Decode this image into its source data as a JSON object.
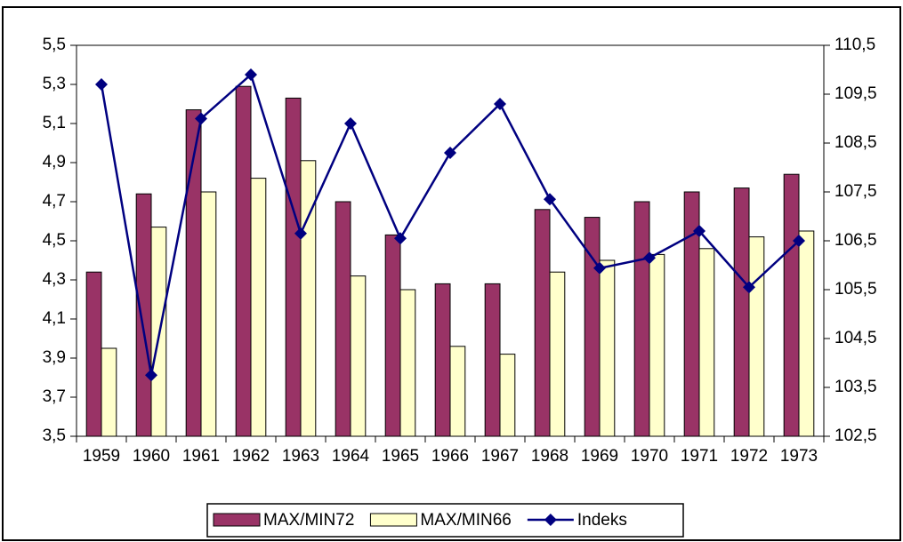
{
  "chart_data": {
    "type": "bar-line",
    "categories": [
      "1959",
      "1960",
      "1961",
      "1962",
      "1963",
      "1964",
      "1965",
      "1966",
      "1967",
      "1968",
      "1969",
      "1970",
      "1971",
      "1972",
      "1973"
    ],
    "series": [
      {
        "name": "MAX/MIN72",
        "type": "bar",
        "color": "#993366",
        "values": [
          4.34,
          4.74,
          5.17,
          5.29,
          5.23,
          4.7,
          4.53,
          4.28,
          4.28,
          4.66,
          4.62,
          4.7,
          4.75,
          4.77,
          4.84
        ]
      },
      {
        "name": "MAX/MIN66",
        "type": "bar",
        "color": "#ffffcc",
        "values": [
          3.95,
          4.57,
          4.75,
          4.82,
          4.91,
          4.32,
          4.25,
          3.96,
          3.92,
          4.34,
          4.4,
          4.43,
          4.46,
          4.52,
          4.55
        ]
      },
      {
        "name": "Indeks",
        "type": "line",
        "axis": "y2",
        "color": "#000080",
        "values": [
          109.7,
          103.75,
          109.0,
          109.9,
          106.65,
          108.9,
          106.55,
          108.3,
          109.3,
          107.35,
          105.94,
          106.15,
          106.7,
          105.55,
          106.5
        ]
      }
    ],
    "ylim": [
      3.5,
      5.5
    ],
    "yticks": [
      {
        "value": 3.5,
        "label": "3,5"
      },
      {
        "value": 3.7,
        "label": "3,7"
      },
      {
        "value": 3.9,
        "label": "3,9"
      },
      {
        "value": 4.1,
        "label": "4,1"
      },
      {
        "value": 4.3,
        "label": "4,3"
      },
      {
        "value": 4.5,
        "label": "4,5"
      },
      {
        "value": 4.7,
        "label": "4,7"
      },
      {
        "value": 4.9,
        "label": "4,9"
      },
      {
        "value": 5.1,
        "label": "5,1"
      },
      {
        "value": 5.3,
        "label": "5,3"
      },
      {
        "value": 5.5,
        "label": "5,5"
      }
    ],
    "y2lim": [
      102.5,
      110.5
    ],
    "y2ticks": [
      {
        "value": 102.5,
        "label": "102,5"
      },
      {
        "value": 103.5,
        "label": "103,5"
      },
      {
        "value": 104.5,
        "label": "104,5"
      },
      {
        "value": 105.5,
        "label": "105,5"
      },
      {
        "value": 106.5,
        "label": "106,5"
      },
      {
        "value": 107.5,
        "label": "107,5"
      },
      {
        "value": 108.5,
        "label": "108,5"
      },
      {
        "value": 109.5,
        "label": "109,5"
      },
      {
        "value": 110.5,
        "label": "110,5"
      }
    ],
    "legend": "bottom"
  }
}
